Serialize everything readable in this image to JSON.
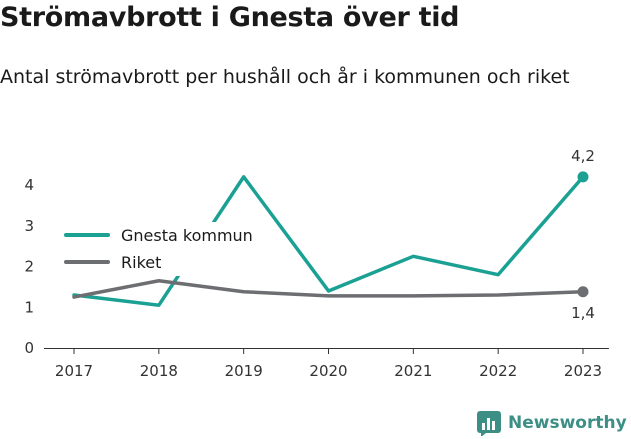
{
  "title": "Strömavbrott i Gnesta över tid",
  "subtitle": "Antal strömavbrott per hushåll och år i kommunen och riket",
  "brand": {
    "name": "Newsworthy",
    "icon": "newsworthy-logo-icon"
  },
  "colors": {
    "gnesta": "#1aa194",
    "riket": "#6d6e71",
    "text": "#1a1a1a"
  },
  "chart_data": {
    "type": "line",
    "categories": [
      "2017",
      "2018",
      "2019",
      "2020",
      "2021",
      "2022",
      "2023"
    ],
    "series": [
      {
        "name": "Gnesta kommun",
        "values": [
          1.3,
          1.05,
          4.2,
          1.4,
          2.25,
          1.8,
          4.2
        ]
      },
      {
        "name": "Riket",
        "values": [
          1.25,
          1.65,
          1.38,
          1.28,
          1.28,
          1.3,
          1.38
        ]
      }
    ],
    "end_labels": [
      "4,2",
      "1,4"
    ],
    "yticks": [
      "0",
      "1",
      "2",
      "3",
      "4"
    ],
    "ylim": [
      0,
      4.2
    ],
    "grid": false,
    "legend": "left"
  }
}
